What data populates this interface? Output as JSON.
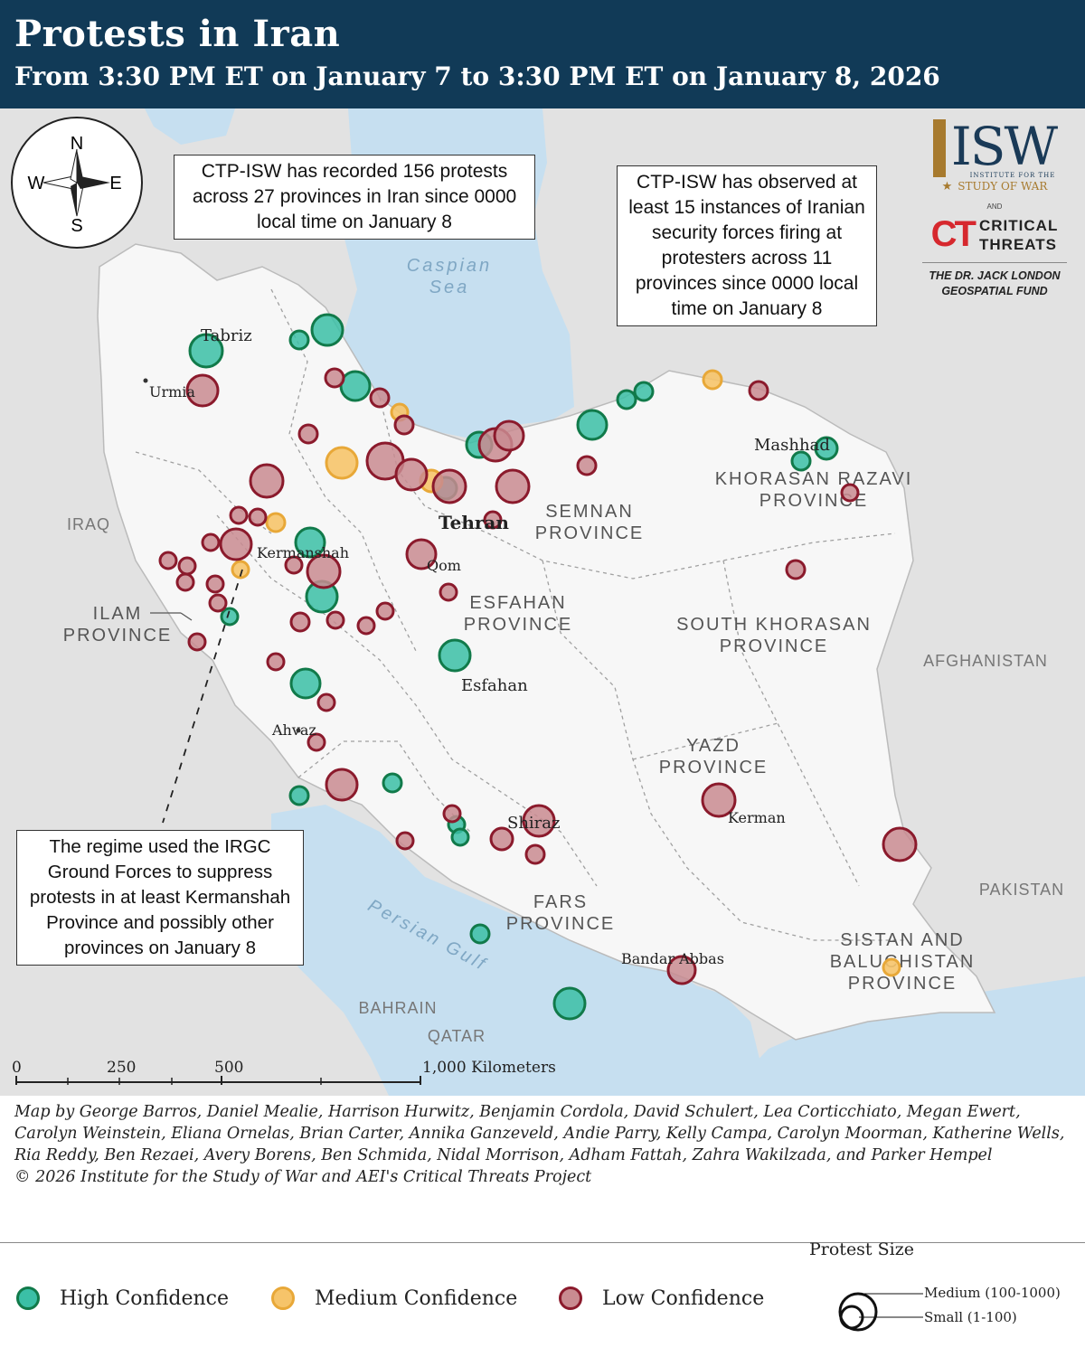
{
  "header": {
    "title": "Protests in Iran",
    "subtitle": "From 3:30 PM ET on January 7 to 3:30 PM ET on January 8, 2026"
  },
  "compass": {
    "n": "N",
    "s": "S",
    "e": "E",
    "w": "W"
  },
  "callouts": {
    "recorded": "CTP-ISW has recorded 156 protests across 27 provinces in Iran since 0000 local time on January 8",
    "observed": "CTP-ISW has observed at least 15 instances of Iranian security forces firing at protesters across 11 provinces since 0000 local time on January 8",
    "regime": "The regime used the IRGC Ground Forces to suppress protests in at least Kermanshah Province and possibly other provinces on January 8"
  },
  "logos": {
    "isw": "ISW",
    "isw_sub": "INSTITUTE FOR THE",
    "isw_name": "STUDY OF WAR",
    "and": "AND",
    "ct_mark": "CT",
    "ct_name_1": "CRITICAL",
    "ct_name_2": "THREATS",
    "fund_1": "THE DR. JACK LONDON",
    "fund_2": "GEOSPATIAL FUND"
  },
  "water_labels": {
    "caspian_1": "Caspian",
    "caspian_2": "Sea",
    "gulf": "Persian Gulf"
  },
  "country_labels": {
    "iraq": "IRAQ",
    "afghanistan": "AFGHANISTAN",
    "pakistan": "PAKISTAN",
    "bahrain": "BAHRAIN",
    "qatar": "QATAR"
  },
  "province_labels": {
    "semnan": [
      "SEMNAN",
      "PROVINCE"
    ],
    "khorasan_razavi": [
      "KHORASAN RAZAVI",
      "PROVINCE"
    ],
    "esfahan": [
      "ESFAHAN",
      "PROVINCE"
    ],
    "south_khorasan": [
      "SOUTH KHORASAN",
      "PROVINCE"
    ],
    "ilam": [
      "ILAM",
      "PROVINCE"
    ],
    "yazd": [
      "YAZD",
      "PROVINCE"
    ],
    "fars": [
      "FARS",
      "PROVINCE"
    ],
    "sistan": [
      "SISTAN AND",
      "BALUCHISTAN",
      "PROVINCE"
    ]
  },
  "cities": {
    "tabriz": "Tabriz",
    "urmia": "Urmia",
    "mashhad": "Mashhad",
    "tehran": "Tehran",
    "kermanshah": "Kermanshah",
    "qom": "Qom",
    "esfahan": "Esfahan",
    "ahvaz": "Ahvaz",
    "shiraz": "Shiraz",
    "kerman": "Kerman",
    "bandar_abbas": "Bandar Abbas"
  },
  "scale": {
    "t0": "0",
    "t1": "250",
    "t2": "500",
    "t3": "1,000 Kilometers"
  },
  "credits": {
    "line": "Map by George Barros, Daniel Mealie, Harrison Hurwitz, Benjamin Cordola, David Schulert, Lea Corticchiato, Megan Ewert, Carolyn Weinstein, Eliana Ornelas, Brian Carter, Annika Ganzeveld, Andie Parry, Kelly Campa, Carolyn Moorman, Katherine Wells, Ria Reddy, Ben Rezaei, Avery Borens, Ben Schmida, Nidal Morrison, Adham Fattah, Zahra Wakilzada, and Parker Hempel",
    "copyright": "© 2026 Institute for the Study of War and AEI's Critical Threats Project"
  },
  "legend": {
    "high": "High Confidence",
    "medium": "Medium Confidence",
    "low": "Low Confidence",
    "size_title": "Protest Size",
    "size_medium": "Medium (100-1000)",
    "size_small": "Small (1-100)"
  },
  "colors": {
    "header_bg": "#113a57",
    "water": "#c6dff0",
    "land_other": "#e2e2e2",
    "iran_land": "#f7f7f7",
    "high_fill": "#3bbfa6",
    "high_stroke": "#117a4a",
    "medium_fill": "#f6c46a",
    "medium_stroke": "#e8a838",
    "low_fill": "#c98b91",
    "low_stroke": "#8b1a2c"
  }
}
